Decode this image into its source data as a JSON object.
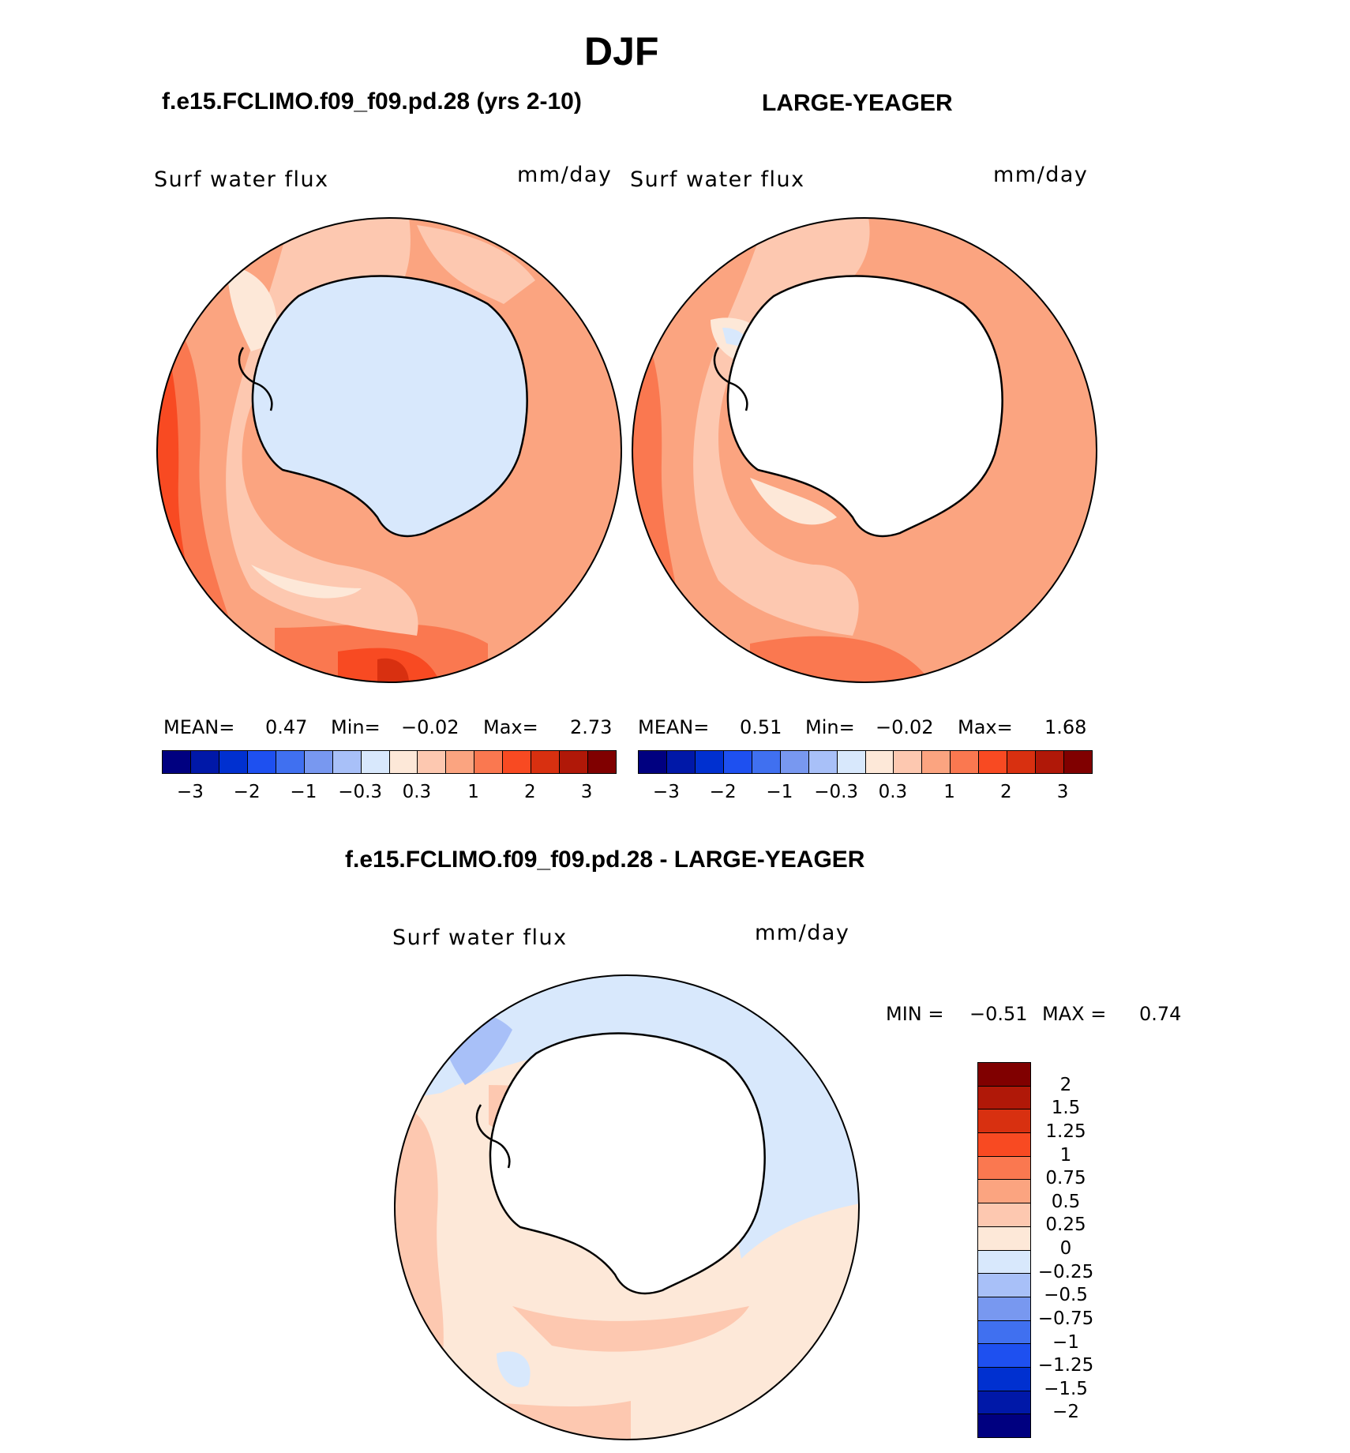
{
  "title": "DJF",
  "panels": {
    "left": {
      "heading": "f.e15.FCLIMO.f09_f09.pd.28 (yrs 2-10)",
      "variable": "Surf water flux",
      "units": "mm/day",
      "mean_label": "MEAN=",
      "mean": "0.47",
      "min_label": "Min=",
      "min": "−0.02",
      "max_label": "Max=",
      "max": "2.73"
    },
    "right": {
      "heading": "LARGE-YEAGER",
      "variable": "Surf water flux",
      "units": "mm/day",
      "mean_label": "MEAN=",
      "mean": "0.51",
      "min_label": "Min=",
      "min": "−0.02",
      "max_label": "Max=",
      "max": "1.68"
    },
    "diff": {
      "heading": "f.e15.FCLIMO.f09_f09.pd.28 - LARGE-YEAGER",
      "variable": "Surf water flux",
      "units": "mm/day",
      "min_label": "MIN =",
      "min": "−0.51",
      "max_label": "MAX =",
      "max": "0.74"
    }
  },
  "top_colorbar": {
    "colors": [
      "#000080",
      "#0018a8",
      "#0030d0",
      "#1e50f0",
      "#4070f0",
      "#7898f0",
      "#a8c0f8",
      "#d8e8fc",
      "#fde8d8",
      "#fdc8b0",
      "#fba480",
      "#fa7850",
      "#f84a22",
      "#d83010",
      "#b01808",
      "#800000"
    ],
    "ticks": [
      "−3",
      "−2",
      "−1",
      "−0.3",
      "0.3",
      "1",
      "2",
      "3"
    ]
  },
  "diff_colorbar": {
    "colors": [
      "#800000",
      "#b01808",
      "#d83010",
      "#f84a22",
      "#fa7850",
      "#fba480",
      "#fdc8b0",
      "#fde8d8",
      "#d8e8fc",
      "#a8c0f8",
      "#7898f0",
      "#4070f0",
      "#1e50f0",
      "#0030d0",
      "#0018a8",
      "#000080"
    ],
    "ticks": [
      "2",
      "1.5",
      "1.25",
      "1",
      "0.75",
      "0.5",
      "0.25",
      "0",
      "−0.25",
      "−0.5",
      "−0.75",
      "−1",
      "−1.25",
      "−1.5",
      "−2"
    ]
  }
}
